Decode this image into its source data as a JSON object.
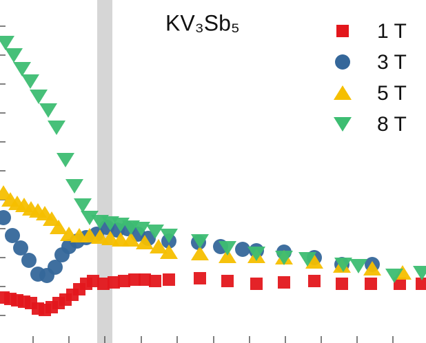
{
  "chart_data": {
    "type": "scatter",
    "title": "KV₃Sb₅",
    "xlim": [
      0,
      618
    ],
    "ylim": [
      0,
      498
    ],
    "xticks": [
      48,
      100,
      152,
      205,
      257,
      310,
      362,
      414,
      466,
      518,
      570
    ],
    "yticks": [
      40,
      82,
      124,
      166,
      208,
      250,
      292,
      334,
      376,
      418,
      460
    ],
    "shaded_region": [
      141,
      163
    ],
    "legend": "upper right",
    "series": [
      {
        "name": "1 T",
        "color": "#e3171c",
        "marker": "square",
        "x": [
          5,
          15,
          25,
          35,
          45,
          55,
          65,
          75,
          85,
          95,
          105,
          115,
          125,
          135,
          150,
          165,
          180,
          195,
          210,
          225,
          245,
          290,
          330,
          372,
          412,
          456,
          496,
          538,
          580,
          612
        ],
        "values": [
          66,
          64,
          62,
          60,
          58,
          50,
          48,
          52,
          58,
          63,
          70,
          78,
          86,
          90,
          86,
          88,
          90,
          92,
          92,
          90,
          92,
          94,
          90,
          86,
          88,
          90,
          86,
          86,
          86,
          86
        ]
      },
      {
        "name": "3 T",
        "color": "#35679a",
        "marker": "circle",
        "x": [
          5,
          18,
          30,
          42,
          55,
          68,
          80,
          90,
          100,
          112,
          125,
          140,
          155,
          170,
          185,
          200,
          215,
          245,
          288,
          320,
          352,
          372,
          412,
          456,
          496,
          540
        ],
        "values": [
          182,
          156,
          138,
          120,
          100,
          98,
          110,
          128,
          140,
          148,
          153,
          158,
          168,
          164,
          166,
          158,
          152,
          148,
          146,
          140,
          136,
          134,
          132,
          124,
          114,
          114
        ]
      },
      {
        "name": "5 T",
        "color": "#f5bf00",
        "marker": "triangle-up",
        "x": [
          5,
          15,
          25,
          35,
          45,
          55,
          65,
          75,
          85,
          100,
          115,
          130,
          145,
          160,
          175,
          190,
          210,
          230,
          245,
          290,
          330,
          372,
          412,
          456,
          496,
          540,
          584
        ],
        "values": [
          218,
          208,
          203,
          200,
          195,
          192,
          188,
          180,
          168,
          158,
          156,
          156,
          154,
          152,
          150,
          150,
          146,
          140,
          132,
          130,
          126,
          126,
          124,
          118,
          112,
          108,
          102
        ]
      },
      {
        "name": "8 T",
        "color": "#3dbd72",
        "marker": "triangle-down",
        "x": [
          8,
          20,
          32,
          44,
          56,
          70,
          82,
          95,
          108,
          120,
          130,
          145,
          160,
          175,
          190,
          205,
          225,
          245,
          290,
          330,
          372,
          412,
          446,
          498,
          520,
          572,
          612
        ],
        "values": [
          436,
          418,
          398,
          380,
          358,
          338,
          313,
          266,
          228,
          200,
          182,
          176,
          174,
          172,
          168,
          166,
          162,
          156,
          148,
          138,
          130,
          124,
          122,
          114,
          112,
          98,
          102
        ]
      }
    ]
  }
}
